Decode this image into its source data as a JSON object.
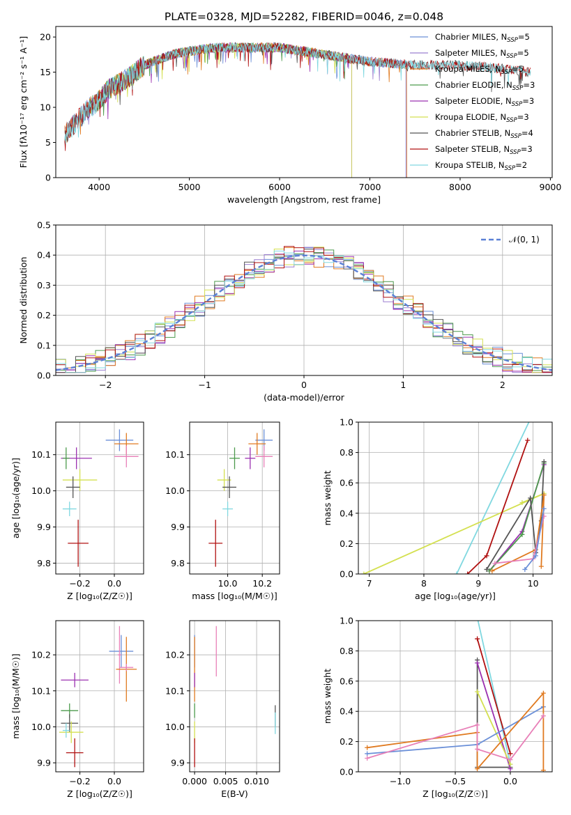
{
  "title": "PLATE=0328, MJD=52282, FIBERID=0046, z=0.048",
  "colors": {
    "Chabrier MILES": "#6a8fd8",
    "Salpeter MILES": "#9b7fd0",
    "Kroupa MILES": "#e07a20",
    "Chabrier ELODIE": "#4c9a4c",
    "Salpeter ELODIE": "#9b30b0",
    "Kroupa ELODIE": "#d4e050",
    "Chabrier STELIB": "#555555",
    "Salpeter STELIB": "#b01010",
    "Kroupa STELIB": "#80d8e0",
    "pink": "#e880b8",
    "normal": "#5b80d6"
  },
  "chart_data": [
    {
      "id": "spectrum",
      "type": "line",
      "xlabel": "wavelength [Angstrom, rest frame]",
      "ylabel": "Flux [fλ10⁻¹⁷ erg cm⁻² s⁻¹ A⁻¹]",
      "xlim": [
        3520,
        9020
      ],
      "ylim": [
        0,
        21.5
      ],
      "xticks": [
        4000,
        5000,
        6000,
        7000,
        8000,
        9000
      ],
      "yticks": [
        0,
        5,
        10,
        15,
        20
      ],
      "legend": [
        {
          "name": "Chabrier MILES",
          "sub": "SSP",
          "n": "5"
        },
        {
          "name": "Salpeter MILES",
          "sub": "SSP",
          "n": "5"
        },
        {
          "name": "Kroupa MILES",
          "sub": "SSP",
          "n": "5"
        },
        {
          "name": "Chabrier ELODIE",
          "sub": "SSP",
          "n": "3"
        },
        {
          "name": "Salpeter ELODIE",
          "sub": "SSP",
          "n": "3"
        },
        {
          "name": "Kroupa ELODIE",
          "sub": "SSP",
          "n": "3"
        },
        {
          "name": "Chabrier STELIB",
          "sub": "SSP",
          "n": "4"
        },
        {
          "name": "Salpeter STELIB",
          "sub": "SSP",
          "n": "3"
        },
        {
          "name": "Kroupa STELIB",
          "sub": "SSP",
          "n": "2"
        }
      ],
      "continuum": [
        [
          3620,
          6
        ],
        [
          3750,
          8
        ],
        [
          3900,
          10
        ],
        [
          4000,
          11
        ],
        [
          4100,
          12.5
        ],
        [
          4300,
          14
        ],
        [
          4500,
          16
        ],
        [
          4800,
          17.5
        ],
        [
          5000,
          18
        ],
        [
          5300,
          18.5
        ],
        [
          5600,
          18.5
        ],
        [
          6000,
          18.5
        ],
        [
          6500,
          17.5
        ],
        [
          7000,
          16.5
        ],
        [
          7500,
          16
        ],
        [
          8000,
          16
        ],
        [
          8500,
          15.5
        ],
        [
          8780,
          15
        ]
      ],
      "xrange_by_model": {
        "Chabrier MILES": [
          3620,
          7400
        ],
        "Salpeter MILES": [
          3620,
          7400
        ],
        "Kroupa MILES": [
          3620,
          7410
        ],
        "Chabrier ELODIE": [
          3900,
          6800
        ],
        "Salpeter ELODIE": [
          3900,
          6800
        ],
        "Kroupa ELODIE": [
          3900,
          6800
        ],
        "Chabrier STELIB": [
          3620,
          8780
        ],
        "Salpeter STELIB": [
          3620,
          8780
        ],
        "Kroupa STELIB": [
          3620,
          8780
        ]
      }
    },
    {
      "id": "residuals",
      "type": "histogram",
      "xlabel": "(data-model)/error",
      "ylabel": "Normed distribution",
      "xlim": [
        -2.5,
        2.5
      ],
      "ylim": [
        0,
        0.5
      ],
      "xticks": [
        -2,
        -1,
        0,
        1,
        2
      ],
      "yticks": [
        0,
        0.1,
        0.2,
        0.3,
        0.4,
        0.5
      ],
      "bin_width": 0.1,
      "legend": "𝒩(0, 1)",
      "series_count": 9
    },
    {
      "id": "age_vs_Z",
      "type": "errorbar",
      "xlabel": "Z [log₁₀(Z/Z☉)]",
      "ylabel": "age  [log₁₀(age/yr)]",
      "xlim": [
        -0.34,
        0.17
      ],
      "ylim": [
        9.77,
        10.19
      ],
      "xticks": [
        -0.2,
        0.0
      ],
      "yticks": [
        9.8,
        9.9,
        10.0,
        10.1
      ],
      "points": [
        {
          "c": "Chabrier MILES",
          "x": 0.03,
          "y": 10.14,
          "xe": 0.08,
          "ye": 0.03
        },
        {
          "c": "Kroupa MILES",
          "x": 0.07,
          "y": 10.13,
          "xe": 0.07,
          "ye": 0.03
        },
        {
          "c": "pink",
          "x": 0.07,
          "y": 10.095,
          "xe": 0.07,
          "ye": 0.03
        },
        {
          "c": "Salpeter ELODIE",
          "x": -0.22,
          "y": 10.09,
          "xe": 0.09,
          "ye": 0.03
        },
        {
          "c": "Chabrier ELODIE",
          "x": -0.28,
          "y": 10.09,
          "xe": 0.02,
          "ye": 0.03
        },
        {
          "c": "Kroupa ELODIE",
          "x": -0.2,
          "y": 10.03,
          "xe": 0.1,
          "ye": 0.03
        },
        {
          "c": "Chabrier STELIB",
          "x": -0.24,
          "y": 10.01,
          "xe": 0.04,
          "ye": 0.03
        },
        {
          "c": "Kroupa STELIB",
          "x": -0.26,
          "y": 9.95,
          "xe": 0.04,
          "ye": 0.02
        },
        {
          "c": "Salpeter STELIB",
          "x": -0.21,
          "y": 9.855,
          "xe": 0.06,
          "ye": 0.065
        }
      ]
    },
    {
      "id": "age_vs_mass",
      "type": "errorbar",
      "xlabel": "mass [log₁₀(M/M☉)]",
      "ylabel": "",
      "xlim": [
        9.78,
        10.3
      ],
      "ylim": [
        9.77,
        10.19
      ],
      "xticks": [
        10.0,
        10.2
      ],
      "yticks": [
        9.8,
        9.9,
        10.0,
        10.1
      ],
      "points": [
        {
          "c": "Chabrier MILES",
          "x": 10.21,
          "y": 10.14,
          "xe": 0.05,
          "ye": 0.03
        },
        {
          "c": "Kroupa MILES",
          "x": 10.17,
          "y": 10.13,
          "xe": 0.05,
          "ye": 0.03
        },
        {
          "c": "pink",
          "x": 10.21,
          "y": 10.095,
          "xe": 0.05,
          "ye": 0.03
        },
        {
          "c": "Salpeter ELODIE",
          "x": 10.13,
          "y": 10.09,
          "xe": 0.03,
          "ye": 0.03
        },
        {
          "c": "Chabrier ELODIE",
          "x": 10.04,
          "y": 10.09,
          "xe": 0.03,
          "ye": 0.03
        },
        {
          "c": "Kroupa ELODIE",
          "x": 9.98,
          "y": 10.03,
          "xe": 0.04,
          "ye": 0.03
        },
        {
          "c": "Chabrier STELIB",
          "x": 10.01,
          "y": 10.01,
          "xe": 0.04,
          "ye": 0.03
        },
        {
          "c": "Kroupa STELIB",
          "x": 10.0,
          "y": 9.95,
          "xe": 0.03,
          "ye": 0.02
        },
        {
          "c": "Salpeter STELIB",
          "x": 9.93,
          "y": 9.855,
          "xe": 0.04,
          "ye": 0.065
        }
      ]
    },
    {
      "id": "weight_vs_age",
      "type": "line",
      "xlabel": "age  [log₁₀(age/yr)]",
      "ylabel": "mass weight",
      "xlim": [
        6.8,
        10.35
      ],
      "ylim": [
        0,
        1
      ],
      "xticks": [
        7,
        8,
        9,
        10
      ],
      "yticks": [
        0,
        0.2,
        0.4,
        0.6,
        0.8,
        1.0
      ],
      "series": [
        {
          "c": "Kroupa STELIB",
          "points": [
            [
              8.6,
              0
            ],
            [
              9.95,
              1.02
            ]
          ]
        },
        {
          "c": "Kroupa ELODIE",
          "points": [
            [
              6.9,
              0
            ],
            [
              10.2,
              0.53
            ],
            [
              9.8,
              0.47
            ]
          ]
        },
        {
          "c": "Salpeter STELIB",
          "points": [
            [
              8.8,
              0
            ],
            [
              9.15,
              0.12
            ],
            [
              9.9,
              0.88
            ]
          ]
        },
        {
          "c": "Salpeter ELODIE",
          "points": [
            [
              9.2,
              0.02
            ],
            [
              9.8,
              0.28
            ],
            [
              10.2,
              0.72
            ]
          ]
        },
        {
          "c": "Chabrier ELODIE",
          "points": [
            [
              9.2,
              0.02
            ],
            [
              9.8,
              0.26
            ],
            [
              10.2,
              0.73
            ]
          ]
        },
        {
          "c": "Chabrier STELIB",
          "points": [
            [
              9.15,
              0.03
            ],
            [
              9.95,
              0.5
            ],
            [
              10.05,
              0.14
            ],
            [
              10.15,
              0.35
            ],
            [
              10.2,
              0.74
            ]
          ]
        },
        {
          "c": "Kroupa MILES",
          "points": [
            [
              9.25,
              0.02
            ],
            [
              10.05,
              0.16
            ],
            [
              10.2,
              0.52
            ],
            [
              10.15,
              0.05
            ]
          ]
        },
        {
          "c": "pink",
          "points": [
            [
              9.3,
              0.07
            ],
            [
              10.0,
              0.1
            ],
            [
              10.2,
              0.38
            ]
          ]
        },
        {
          "c": "Chabrier MILES",
          "points": [
            [
              9.85,
              0.03
            ],
            [
              10.05,
              0.12
            ],
            [
              10.2,
              0.43
            ]
          ]
        }
      ]
    },
    {
      "id": "mass_vs_Z",
      "type": "errorbar",
      "xlabel": "Z [log₁₀(Z/Z☉)]",
      "ylabel": "mass [log₁₀(M/M☉)]",
      "xlim": [
        -0.34,
        0.17
      ],
      "ylim": [
        9.875,
        10.295
      ],
      "xticks": [
        -0.2,
        0.0
      ],
      "yticks": [
        9.9,
        10.0,
        10.1,
        10.2
      ],
      "points": [
        {
          "c": "Chabrier MILES",
          "x": 0.04,
          "y": 10.21,
          "xe": 0.07,
          "ye": 0.045
        },
        {
          "c": "pink",
          "x": 0.03,
          "y": 10.2,
          "xe": 0.01,
          "ye": 0.08
        },
        {
          "c": "Kroupa MILES",
          "x": 0.07,
          "y": 10.16,
          "xe": 0.06,
          "ye": 0.09
        },
        {
          "c": "pink",
          "x": 0.07,
          "y": 10.165,
          "xe": 0.04,
          "ye": 0.01
        },
        {
          "c": "Salpeter ELODIE",
          "x": -0.23,
          "y": 10.13,
          "xe": 0.08,
          "ye": 0.02
        },
        {
          "c": "Chabrier ELODIE",
          "x": -0.26,
          "y": 10.045,
          "xe": 0.05,
          "ye": 0.02
        },
        {
          "c": "Chabrier STELIB",
          "x": -0.26,
          "y": 10.01,
          "xe": 0.05,
          "ye": 0.025
        },
        {
          "c": "Kroupa ELODIE",
          "x": -0.25,
          "y": 9.985,
          "xe": 0.07,
          "ye": 0.03
        },
        {
          "c": "Kroupa STELIB",
          "x": -0.28,
          "y": 9.99,
          "xe": 0.02,
          "ye": 0.02
        },
        {
          "c": "Salpeter STELIB",
          "x": -0.23,
          "y": 9.928,
          "xe": 0.05,
          "ye": 0.04
        }
      ]
    },
    {
      "id": "mass_vs_ebv",
      "type": "errorbar",
      "xlabel": "E(B-V)",
      "ylabel": "",
      "xlim": [
        -0.0008,
        0.0137
      ],
      "ylim": [
        9.875,
        10.295
      ],
      "xticks": [
        0.0,
        0.005,
        0.01
      ],
      "xticklabels": [
        "0.000",
        "0.005",
        "0.010"
      ],
      "yticks": [
        9.9,
        10.0,
        10.1,
        10.2
      ],
      "points": [
        {
          "c": "Chabrier MILES",
          "x": 0.0,
          "y": 10.21,
          "xe": 0,
          "ye": 0.045
        },
        {
          "c": "pink",
          "x": 0.0035,
          "y": 10.21,
          "xe": 0,
          "ye": 0.07
        },
        {
          "c": "Kroupa MILES",
          "x": 0.0,
          "y": 10.16,
          "xe": 0,
          "ye": 0.09
        },
        {
          "c": "Salpeter ELODIE",
          "x": 0.0,
          "y": 10.13,
          "xe": 0,
          "ye": 0.02
        },
        {
          "c": "Chabrier ELODIE",
          "x": 0.0,
          "y": 10.045,
          "xe": 0,
          "ye": 0.02
        },
        {
          "c": "Kroupa ELODIE",
          "x": 0.0,
          "y": 9.985,
          "xe": 0,
          "ye": 0.03
        },
        {
          "c": "Salpeter STELIB",
          "x": 0.0,
          "y": 9.928,
          "xe": 0,
          "ye": 0.04
        },
        {
          "c": "Chabrier STELIB",
          "x": 0.013,
          "y": 10.03,
          "xe": 0,
          "ye": 0.03
        },
        {
          "c": "Kroupa STELIB",
          "x": 0.013,
          "y": 10.01,
          "xe": 0,
          "ye": 0.03
        }
      ]
    },
    {
      "id": "weight_vs_Z",
      "type": "line",
      "xlabel": "Z [log₁₀(Z/Z☉)]",
      "ylabel": "mass weight",
      "xlim": [
        -1.38,
        0.38
      ],
      "ylim": [
        0,
        1
      ],
      "xticks": [
        -1.0,
        -0.5,
        0.0
      ],
      "yticks": [
        0,
        0.2,
        0.4,
        0.6,
        0.8,
        1.0
      ],
      "series": [
        {
          "c": "Kroupa STELIB",
          "points": [
            [
              -0.3,
              1.02
            ],
            [
              0.0,
              0.05
            ]
          ]
        },
        {
          "c": "Salpeter STELIB",
          "points": [
            [
              -0.3,
              0.88
            ],
            [
              0.0,
              0.12
            ]
          ]
        },
        {
          "c": "Chabrier STELIB",
          "points": [
            [
              -0.3,
              0.74
            ],
            [
              -0.3,
              0.03
            ],
            [
              0.0,
              0.03
            ]
          ]
        },
        {
          "c": "Salpeter ELODIE",
          "points": [
            [
              -0.3,
              0.72
            ],
            [
              0.0,
              0.02
            ]
          ]
        },
        {
          "c": "Kroupa ELODIE",
          "points": [
            [
              -0.3,
              0.53
            ],
            [
              0.0,
              0.05
            ]
          ]
        },
        {
          "c": "Chabrier MILES",
          "points": [
            [
              -1.3,
              0.12
            ],
            [
              -0.3,
              0.18
            ],
            [
              0.3,
              0.43
            ]
          ]
        },
        {
          "c": "Kroupa MILES",
          "points": [
            [
              -1.3,
              0.16
            ],
            [
              -0.3,
              0.26
            ],
            [
              -0.3,
              0.02
            ],
            [
              0.3,
              0.52
            ],
            [
              0.3,
              0.01
            ]
          ]
        },
        {
          "c": "pink",
          "points": [
            [
              -1.3,
              0.09
            ],
            [
              -0.3,
              0.31
            ],
            [
              -0.3,
              0.15
            ],
            [
              0.0,
              0.08
            ],
            [
              0.3,
              0.37
            ]
          ]
        }
      ]
    }
  ]
}
